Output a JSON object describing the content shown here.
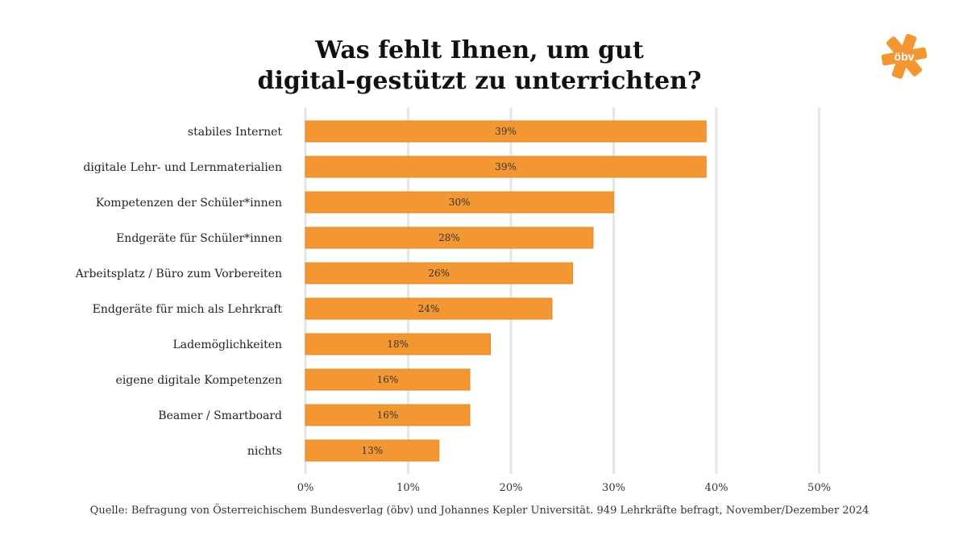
{
  "chart_data": {
    "type": "bar",
    "orientation": "horizontal",
    "title_line1": "Was fehlt Ihnen, um gut",
    "title_line2": "digital-gestützt zu unterrichten?",
    "categories": [
      "stabiles Internet",
      "digitale Lehr- und Lernmaterialien",
      "Kompetenzen der Schüler*innen",
      "Endgeräte für Schüler*innen",
      "Arbeitsplatz / Büro zum Vorbereiten",
      "Endgeräte für mich als Lehrkraft",
      "Lademöglichkeiten",
      "eigene digitale Kompetenzen",
      "Beamer / Smartboard",
      "nichts"
    ],
    "values": [
      39,
      39,
      30,
      28,
      26,
      24,
      18,
      16,
      16,
      13
    ],
    "value_labels": [
      "39%",
      "39%",
      "30%",
      "28%",
      "26%",
      "24%",
      "18%",
      "16%",
      "16%",
      "13%"
    ],
    "xlim": [
      0,
      50
    ],
    "ticks": [
      0,
      10,
      20,
      30,
      40,
      50
    ],
    "tick_labels": [
      "0%",
      "10%",
      "20%",
      "30%",
      "40%",
      "50%"
    ],
    "grid": true,
    "bar_color": "#f39733",
    "grid_color": "#e6e6e6",
    "source": "Quelle: Befragung von Österreichischem Bundesverlag (öbv) und Johannes Kepler Universität. 949 Lehrkräfte befragt, November/Dezember 2024"
  },
  "logo": {
    "text": "öbv",
    "color": "#f39733"
  }
}
